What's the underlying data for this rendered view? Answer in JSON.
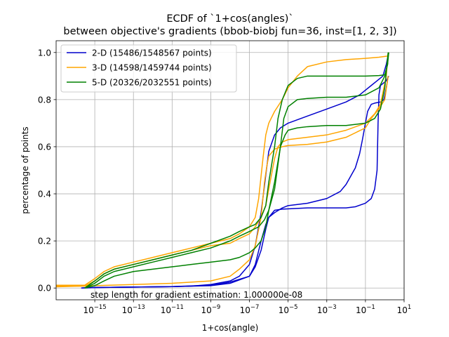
{
  "chart_data": {
    "type": "line",
    "title_line1": "ECDF of `1+cos(angles)`",
    "title_line2": "between objective's gradients (bbob-biobj fun=36, inst=[1, 2, 3])",
    "xlabel": "1+cos(angle)",
    "ylabel": "percentage of points",
    "x_scale": "log",
    "xlim": [
      1e-17,
      10.0
    ],
    "ylim": [
      -0.05,
      1.05
    ],
    "grid": true,
    "legend_position": "top-left",
    "annotation": "step length for gradient estimation: 1.000000e-08",
    "x_ticks": [
      {
        "value": 1e-15,
        "base": "10",
        "exp": "−15"
      },
      {
        "value": 1e-13,
        "base": "10",
        "exp": "−13"
      },
      {
        "value": 1e-11,
        "base": "10",
        "exp": "−11"
      },
      {
        "value": 1e-09,
        "base": "10",
        "exp": "−9"
      },
      {
        "value": 1e-07,
        "base": "10",
        "exp": "−7"
      },
      {
        "value": 1e-05,
        "base": "10",
        "exp": "−5"
      },
      {
        "value": 0.001,
        "base": "10",
        "exp": "−3"
      },
      {
        "value": 0.1,
        "base": "10",
        "exp": "−1"
      },
      {
        "value": 10.0,
        "base": "10",
        "exp": "1"
      }
    ],
    "y_ticks": [
      {
        "value": 0.0,
        "label": "0.0"
      },
      {
        "value": 0.2,
        "label": "0.2"
      },
      {
        "value": 0.4,
        "label": "0.4"
      },
      {
        "value": 0.6,
        "label": "0.6"
      },
      {
        "value": 0.8,
        "label": "0.8"
      },
      {
        "value": 1.0,
        "label": "1.0"
      }
    ],
    "series": [
      {
        "name": "2-D (15486/1548567 points)",
        "color": "#0000cc",
        "curves": [
          [
            [
              2e-16,
              0.0
            ],
            [
              1e-15,
              0.002
            ],
            [
              1e-13,
              0.004
            ],
            [
              1e-11,
              0.006
            ],
            [
              1e-10,
              0.008
            ],
            [
              1e-09,
              0.015
            ],
            [
              1e-08,
              0.03
            ],
            [
              3e-08,
              0.05
            ],
            [
              1e-07,
              0.1
            ],
            [
              2e-07,
              0.18
            ],
            [
              4e-07,
              0.32
            ],
            [
              7e-07,
              0.48
            ],
            [
              1e-06,
              0.58
            ],
            [
              2e-06,
              0.65
            ],
            [
              4e-06,
              0.68
            ],
            [
              1e-05,
              0.7
            ],
            [
              0.0001,
              0.73
            ],
            [
              0.001,
              0.76
            ],
            [
              0.01,
              0.79
            ],
            [
              0.05,
              0.82
            ],
            [
              0.1,
              0.84
            ],
            [
              0.2,
              0.86
            ],
            [
              0.4,
              0.88
            ],
            [
              0.8,
              0.9
            ],
            [
              1.2,
              0.95
            ],
            [
              1.6,
              1.0
            ]
          ],
          [
            [
              2e-16,
              0.0
            ],
            [
              1e-15,
              0.002
            ],
            [
              1e-13,
              0.004
            ],
            [
              1e-11,
              0.006
            ],
            [
              1e-09,
              0.01
            ],
            [
              1e-08,
              0.02
            ],
            [
              1e-07,
              0.05
            ],
            [
              2e-07,
              0.1
            ],
            [
              4e-07,
              0.2
            ],
            [
              7e-07,
              0.27
            ],
            [
              1e-06,
              0.3
            ],
            [
              2e-06,
              0.32
            ],
            [
              5e-06,
              0.34
            ],
            [
              1e-05,
              0.35
            ],
            [
              0.0001,
              0.36
            ],
            [
              0.001,
              0.38
            ],
            [
              0.005,
              0.41
            ],
            [
              0.01,
              0.44
            ],
            [
              0.03,
              0.51
            ],
            [
              0.05,
              0.57
            ],
            [
              0.07,
              0.63
            ],
            [
              0.1,
              0.7
            ],
            [
              0.13,
              0.75
            ],
            [
              0.2,
              0.78
            ],
            [
              0.3,
              0.785
            ],
            [
              0.6,
              0.79
            ],
            [
              0.9,
              0.8
            ],
            [
              1.2,
              0.85
            ],
            [
              1.5,
              0.9
            ]
          ],
          [
            [
              2e-16,
              0.0
            ],
            [
              1e-15,
              0.002
            ],
            [
              1e-13,
              0.004
            ],
            [
              1e-11,
              0.006
            ],
            [
              1e-09,
              0.012
            ],
            [
              1e-08,
              0.025
            ],
            [
              1e-07,
              0.05
            ],
            [
              2e-07,
              0.09
            ],
            [
              4e-07,
              0.16
            ],
            [
              7e-07,
              0.25
            ],
            [
              1e-06,
              0.3
            ],
            [
              2e-06,
              0.33
            ],
            [
              5e-06,
              0.335
            ],
            [
              0.0001,
              0.34
            ],
            [
              0.01,
              0.34
            ],
            [
              0.03,
              0.345
            ],
            [
              0.1,
              0.36
            ],
            [
              0.2,
              0.38
            ],
            [
              0.3,
              0.42
            ],
            [
              0.4,
              0.5
            ],
            [
              0.45,
              0.7
            ],
            [
              0.5,
              0.82
            ],
            [
              0.6,
              0.86
            ],
            [
              1.2,
              0.88
            ],
            [
              1.6,
              0.9
            ]
          ]
        ]
      },
      {
        "name": "3-D (14598/1459744 points)",
        "color": "#ffa500",
        "curves": [
          [
            [
              1e-17,
              0.012
            ],
            [
              3e-16,
              0.012
            ],
            [
              1e-15,
              0.04
            ],
            [
              3e-15,
              0.07
            ],
            [
              1e-14,
              0.09
            ],
            [
              1e-13,
              0.11
            ],
            [
              1e-12,
              0.13
            ],
            [
              1e-11,
              0.15
            ],
            [
              1e-10,
              0.17
            ],
            [
              1e-09,
              0.19
            ],
            [
              1e-08,
              0.21
            ],
            [
              3e-08,
              0.23
            ],
            [
              1e-07,
              0.26
            ],
            [
              2e-07,
              0.3
            ],
            [
              3e-07,
              0.38
            ],
            [
              5e-07,
              0.55
            ],
            [
              7e-07,
              0.65
            ],
            [
              1e-06,
              0.7
            ],
            [
              2e-06,
              0.75
            ],
            [
              5e-06,
              0.8
            ],
            [
              1e-05,
              0.85
            ],
            [
              3e-05,
              0.9
            ],
            [
              0.0001,
              0.94
            ],
            [
              0.001,
              0.96
            ],
            [
              0.01,
              0.97
            ],
            [
              0.1,
              0.975
            ],
            [
              0.5,
              0.98
            ],
            [
              1.5,
              0.985
            ],
            [
              1.6,
              1.0
            ]
          ],
          [
            [
              1e-17,
              0.008
            ],
            [
              3e-16,
              0.008
            ],
            [
              1e-15,
              0.03
            ],
            [
              3e-15,
              0.06
            ],
            [
              1e-14,
              0.08
            ],
            [
              1e-13,
              0.1
            ],
            [
              1e-12,
              0.12
            ],
            [
              1e-11,
              0.14
            ],
            [
              1e-10,
              0.16
            ],
            [
              1e-09,
              0.18
            ],
            [
              1e-08,
              0.19
            ],
            [
              3e-08,
              0.21
            ],
            [
              1e-07,
              0.23
            ],
            [
              2e-07,
              0.26
            ],
            [
              4e-07,
              0.3
            ],
            [
              7e-07,
              0.35
            ],
            [
              1e-06,
              0.42
            ],
            [
              2e-06,
              0.55
            ],
            [
              3e-06,
              0.6
            ],
            [
              5e-06,
              0.62
            ],
            [
              1e-05,
              0.63
            ],
            [
              0.0001,
              0.64
            ],
            [
              0.001,
              0.65
            ],
            [
              0.01,
              0.67
            ],
            [
              0.1,
              0.7
            ],
            [
              0.3,
              0.74
            ],
            [
              0.6,
              0.78
            ],
            [
              1.2,
              0.9
            ],
            [
              1.5,
              1.0
            ]
          ],
          [
            [
              1e-17,
              0.005
            ],
            [
              1e-15,
              0.01
            ],
            [
              1e-13,
              0.015
            ],
            [
              1e-11,
              0.02
            ],
            [
              1e-09,
              0.03
            ],
            [
              1e-08,
              0.05
            ],
            [
              3e-08,
              0.08
            ],
            [
              1e-07,
              0.12
            ],
            [
              2e-07,
              0.18
            ],
            [
              4e-07,
              0.3
            ],
            [
              6e-07,
              0.45
            ],
            [
              8e-07,
              0.52
            ],
            [
              1e-06,
              0.56
            ],
            [
              2e-06,
              0.59
            ],
            [
              5e-06,
              0.6
            ],
            [
              1e-05,
              0.605
            ],
            [
              0.0001,
              0.61
            ],
            [
              0.001,
              0.62
            ],
            [
              0.01,
              0.64
            ],
            [
              0.1,
              0.68
            ],
            [
              0.2,
              0.72
            ],
            [
              0.5,
              0.76
            ],
            [
              1.0,
              0.8
            ],
            [
              1.5,
              0.9
            ]
          ]
        ]
      },
      {
        "name": "5-D (20326/2032551 points)",
        "color": "#008000",
        "curves": [
          [
            [
              3e-16,
              0.0
            ],
            [
              1e-15,
              0.03
            ],
            [
              3e-15,
              0.06
            ],
            [
              1e-14,
              0.08
            ],
            [
              1e-13,
              0.1
            ],
            [
              1e-12,
              0.12
            ],
            [
              1e-11,
              0.14
            ],
            [
              1e-10,
              0.16
            ],
            [
              1e-09,
              0.19
            ],
            [
              1e-08,
              0.22
            ],
            [
              3e-08,
              0.24
            ],
            [
              1e-07,
              0.26
            ],
            [
              2e-07,
              0.27
            ],
            [
              4e-07,
              0.3
            ],
            [
              7e-07,
              0.35
            ],
            [
              1e-06,
              0.45
            ],
            [
              2e-06,
              0.6
            ],
            [
              3e-06,
              0.72
            ],
            [
              5e-06,
              0.8
            ],
            [
              1e-05,
              0.86
            ],
            [
              3e-05,
              0.89
            ],
            [
              0.0001,
              0.9
            ],
            [
              0.01,
              0.9
            ],
            [
              0.1,
              0.9
            ],
            [
              0.5,
              0.902
            ],
            [
              1.0,
              0.905
            ],
            [
              1.4,
              0.95
            ],
            [
              1.6,
              1.0
            ]
          ],
          [
            [
              3e-16,
              0.0
            ],
            [
              1e-15,
              0.02
            ],
            [
              3e-15,
              0.05
            ],
            [
              1e-14,
              0.07
            ],
            [
              1e-13,
              0.09
            ],
            [
              1e-12,
              0.11
            ],
            [
              1e-11,
              0.13
            ],
            [
              1e-10,
              0.15
            ],
            [
              1e-09,
              0.17
            ],
            [
              1e-08,
              0.2
            ],
            [
              3e-08,
              0.22
            ],
            [
              1e-07,
              0.24
            ],
            [
              3e-07,
              0.26
            ],
            [
              6e-07,
              0.29
            ],
            [
              1e-06,
              0.33
            ],
            [
              2e-06,
              0.42
            ],
            [
              4e-06,
              0.6
            ],
            [
              6e-06,
              0.72
            ],
            [
              1e-05,
              0.77
            ],
            [
              3e-05,
              0.8
            ],
            [
              0.0001,
              0.805
            ],
            [
              0.001,
              0.81
            ],
            [
              0.01,
              0.81
            ],
            [
              0.1,
              0.82
            ],
            [
              0.5,
              0.85
            ],
            [
              1.0,
              0.9
            ],
            [
              1.4,
              0.95
            ],
            [
              1.5,
              1.0
            ]
          ],
          [
            [
              3e-16,
              0.0
            ],
            [
              1e-15,
              0.01
            ],
            [
              3e-15,
              0.03
            ],
            [
              1e-14,
              0.05
            ],
            [
              1e-13,
              0.07
            ],
            [
              1e-12,
              0.08
            ],
            [
              1e-11,
              0.09
            ],
            [
              1e-10,
              0.1
            ],
            [
              1e-09,
              0.11
            ],
            [
              1e-08,
              0.12
            ],
            [
              3e-08,
              0.13
            ],
            [
              1e-07,
              0.15
            ],
            [
              2e-07,
              0.17
            ],
            [
              4e-07,
              0.2
            ],
            [
              7e-07,
              0.26
            ],
            [
              1e-06,
              0.33
            ],
            [
              2e-06,
              0.45
            ],
            [
              4e-06,
              0.6
            ],
            [
              7e-06,
              0.65
            ],
            [
              1e-05,
              0.67
            ],
            [
              3e-05,
              0.68
            ],
            [
              0.0001,
              0.685
            ],
            [
              0.001,
              0.69
            ],
            [
              0.01,
              0.69
            ],
            [
              0.1,
              0.7
            ],
            [
              0.3,
              0.72
            ],
            [
              0.6,
              0.76
            ],
            [
              1.0,
              0.85
            ],
            [
              1.3,
              0.95
            ],
            [
              1.5,
              1.0
            ]
          ]
        ]
      }
    ]
  }
}
